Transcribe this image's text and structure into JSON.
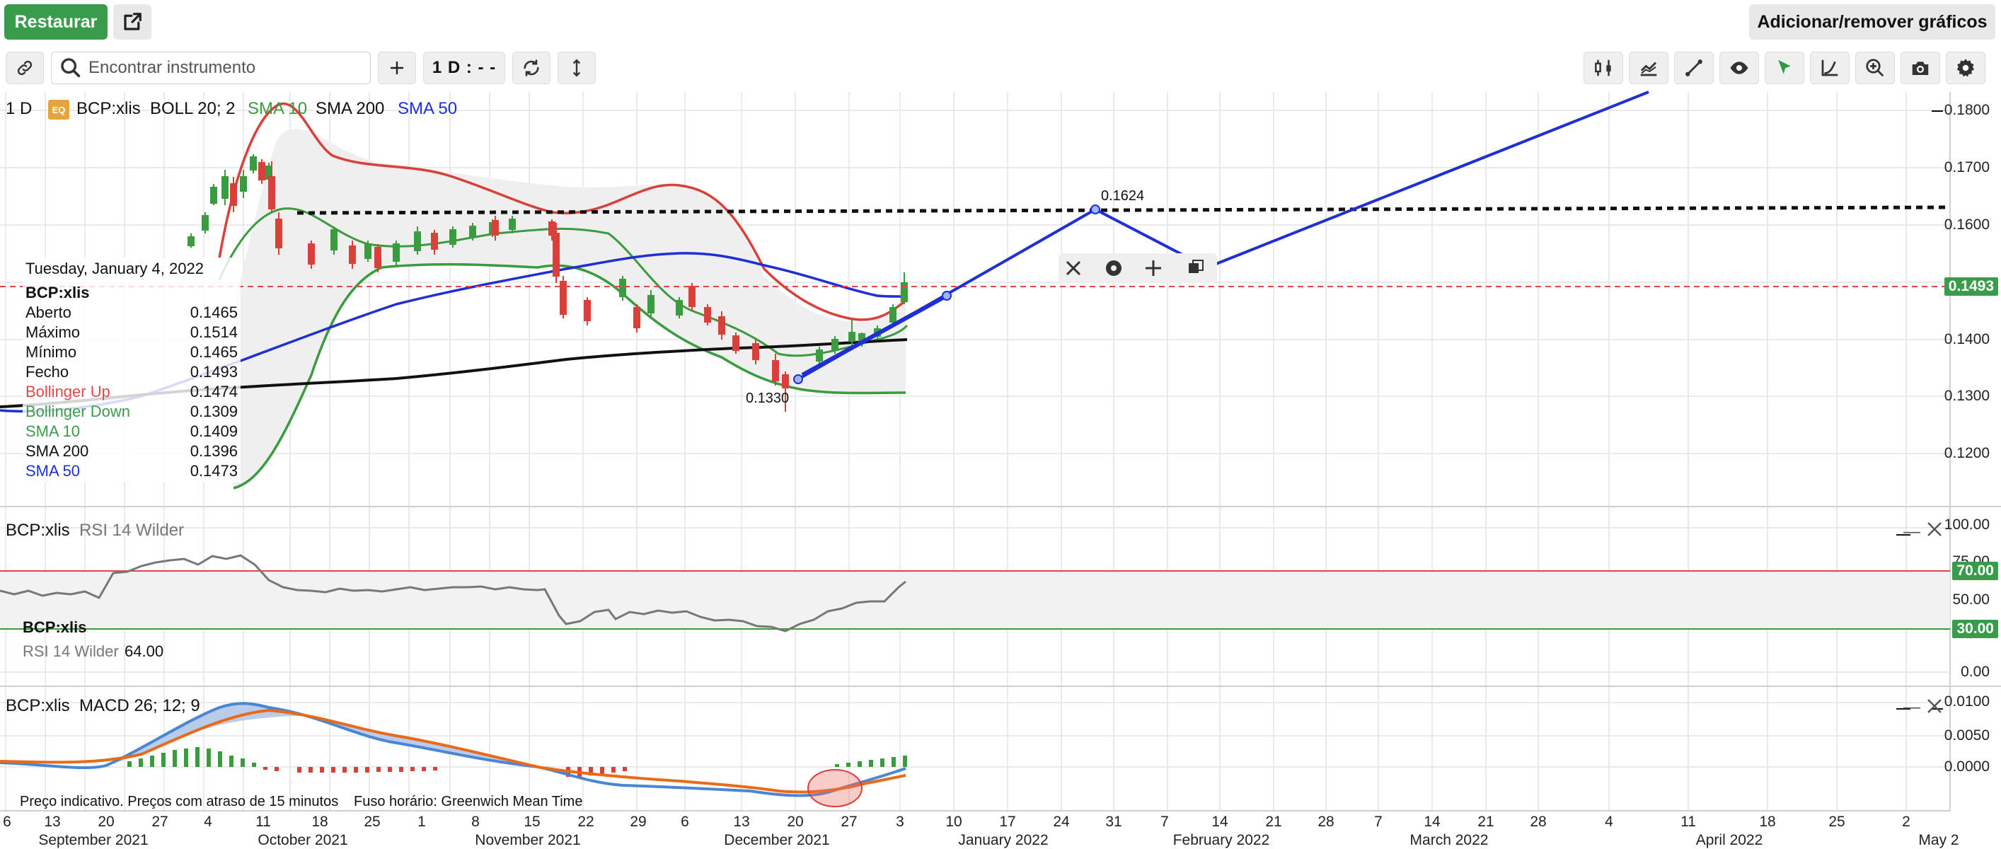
{
  "topbar": {
    "restore_label": "Restaurar",
    "add_remove_label": "Adicionar/remover gráficos"
  },
  "toolbar": {
    "search_placeholder": "Encontrar instrumento",
    "period_label": "1 D : - -"
  },
  "main_panel": {
    "interval": "1 D",
    "eq_badge": "EQ",
    "instrument": "BCP:xlis",
    "boll": "BOLL 20; 2",
    "sma10": "SMA 10",
    "sma200": "SMA 200",
    "sma50": "SMA 50",
    "y_ticks": [
      "0.1800",
      "0.1700",
      "0.1600",
      "0.1400",
      "0.1300",
      "0.1200"
    ],
    "last_price_tag": "0.1493",
    "annotation_high": "0.1624",
    "annotation_low": "0.1330"
  },
  "info": {
    "date": "Tuesday, January 4, 2022",
    "instrument": "BCP:xlis",
    "rows": [
      {
        "k": "Aberto",
        "v": "0.1465",
        "color": "#111111"
      },
      {
        "k": "Máximo",
        "v": "0.1514",
        "color": "#111111"
      },
      {
        "k": "Mínimo",
        "v": "0.1465",
        "color": "#111111"
      },
      {
        "k": "Fecho",
        "v": "0.1493",
        "color": "#111111"
      },
      {
        "k": "Bollinger Up",
        "v": "0.1474",
        "color": "#e04848"
      },
      {
        "k": "Bollinger Down",
        "v": "0.1309",
        "color": "#3a9b4b"
      },
      {
        "k": "SMA 10",
        "v": "0.1409",
        "color": "#3a9b4b"
      },
      {
        "k": "SMA 200",
        "v": "0.1396",
        "color": "#111111"
      },
      {
        "k": "SMA 50",
        "v": "0.1473",
        "color": "#1f2fd6"
      }
    ]
  },
  "rsi_panel": {
    "instrument": "BCP:xlis",
    "label": "RSI 14 Wilder",
    "legend_instrument": "BCP:xlis",
    "legend_label": "RSI 14 Wilder",
    "legend_value": "64.00",
    "y_ticks": [
      "100.00",
      "75.00",
      "50.00",
      "0.00"
    ],
    "tag_70": "70.00",
    "tag_30": "30.00"
  },
  "macd_panel": {
    "instrument": "BCP:xlis",
    "label": "MACD 26; 12; 9",
    "y_ticks": [
      "0.0100",
      "0.0050",
      "0.0000"
    ],
    "footer_note": "Preço indicativo. Preços com atraso de 15 minutos",
    "timezone": "Fuso horário: Greenwich Mean Time"
  },
  "x_axis": {
    "day_ticks": [
      "6",
      "13",
      "20",
      "27",
      "4",
      "11",
      "18",
      "25",
      "1",
      "8",
      "15",
      "22",
      "29",
      "6",
      "13",
      "20",
      "27",
      "3",
      "10",
      "17",
      "24",
      "31",
      "7",
      "14",
      "21",
      "28",
      "7",
      "14",
      "21",
      "28",
      "4",
      "11",
      "18",
      "25",
      "2"
    ],
    "months": [
      "September 2021",
      "October 2021",
      "November 2021",
      "December 2021",
      "January 2022",
      "February 2022",
      "March 2022",
      "April 2022",
      "May 2"
    ]
  },
  "colors": {
    "accent_green": "#3a9b4b",
    "bollinger_up": "#e04848",
    "sma50": "#1f2fd6",
    "sma200": "#111111",
    "trend_line": "#1f2fd6"
  }
}
